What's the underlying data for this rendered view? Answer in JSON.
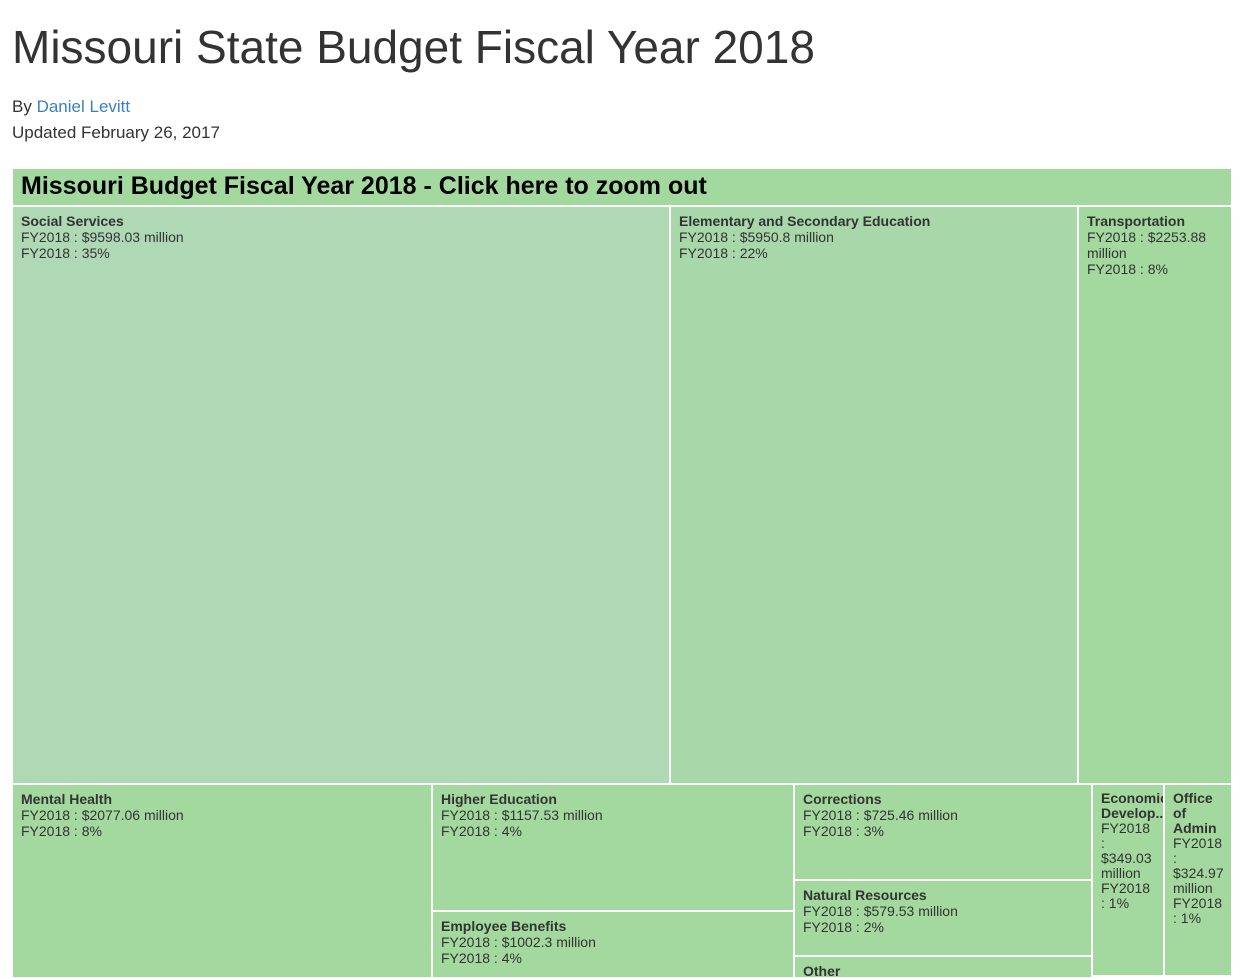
{
  "page": {
    "title": "Missouri State Budget Fiscal Year 2018",
    "by_label": "By",
    "author": "Daniel Levitt",
    "updated": "Updated February 26, 2017"
  },
  "chart_data": {
    "type": "treemap",
    "title": "Missouri Budget Fiscal Year 2018 - Click here to zoom out",
    "unit": "million",
    "cells": [
      {
        "id": "social-services",
        "name": "Social Services",
        "value": 9598.03,
        "value_text": "FY2018 : $9598.03 million",
        "pct_text": "FY2018 : 35%",
        "color": "#aed9b4"
      },
      {
        "id": "elementary-secondary-education",
        "name": "Elementary and Secondary Education",
        "value": 5950.8,
        "value_text": "FY2018 : $5950.8 million",
        "pct_text": "FY2018 : 22%",
        "color": "#a8d8a9"
      },
      {
        "id": "transportation",
        "name": "Transportation",
        "value": 2253.88,
        "value_text": "FY2018 : $2253.88 million",
        "pct_text": "FY2018 : 8%",
        "color": "#a3d99e"
      },
      {
        "id": "mental-health",
        "name": "Mental Health",
        "value": 2077.06,
        "value_text": "FY2018 : $2077.06 million",
        "pct_text": "FY2018 : 8%",
        "color": "#a3d99e"
      },
      {
        "id": "higher-education",
        "name": "Higher Education",
        "value": 1157.53,
        "value_text": "FY2018 : $1157.53 million",
        "pct_text": "FY2018 : 4%",
        "color": "#a3d99e"
      },
      {
        "id": "employee-benefits",
        "name": "Employee Benefits",
        "value": 1002.3,
        "value_text": "FY2018 : $1002.3 million",
        "pct_text": "FY2018 : 4%",
        "color": "#a3d99e"
      },
      {
        "id": "corrections",
        "name": "Corrections",
        "value": 725.46,
        "value_text": "FY2018 : $725.46 million",
        "pct_text": "FY2018 : 3%",
        "color": "#a3d99e"
      },
      {
        "id": "natural-resources",
        "name": "Natural Resources",
        "value": 579.53,
        "value_text": "FY2018 : $579.53 million",
        "pct_text": "FY2018 : 2%",
        "color": "#a3d99e"
      },
      {
        "id": "other",
        "name": "Other",
        "value": null,
        "value_text": "",
        "pct_text": "",
        "color": "#a3d99e"
      },
      {
        "id": "economic-development",
        "name": "Economic Develop...",
        "value": 349.03,
        "value_text": "FY2018 : $349.03 million",
        "pct_text": "FY2018 : 1%",
        "color": "#a3d99e"
      },
      {
        "id": "office-of-admin",
        "name": "Office of Admin",
        "value": 324.97,
        "value_text": "FY2018 : $324.97 million",
        "pct_text": "FY2018 : 1%",
        "color": "#a3d99e"
      }
    ]
  }
}
